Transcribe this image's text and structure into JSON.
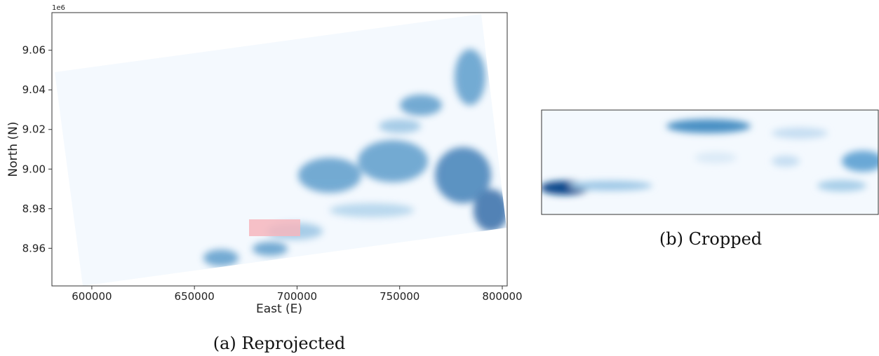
{
  "chart_data": {
    "type": "image",
    "offset_label": "1e6",
    "xlabel": "East (E)",
    "ylabel": "North (N)",
    "xlim": [
      580550,
      802400
    ],
    "ylim": [
      8.941,
      9.079
    ],
    "xticks": [
      600000,
      650000,
      700000,
      750000,
      800000
    ],
    "yticks": [
      8.96,
      8.98,
      {
        "value": 9,
        "label": "9.00"
      },
      9.02,
      9.04,
      9.06
    ]
  },
  "captions": [
    "(a) Reprojected",
    "(b) Cropped"
  ]
}
